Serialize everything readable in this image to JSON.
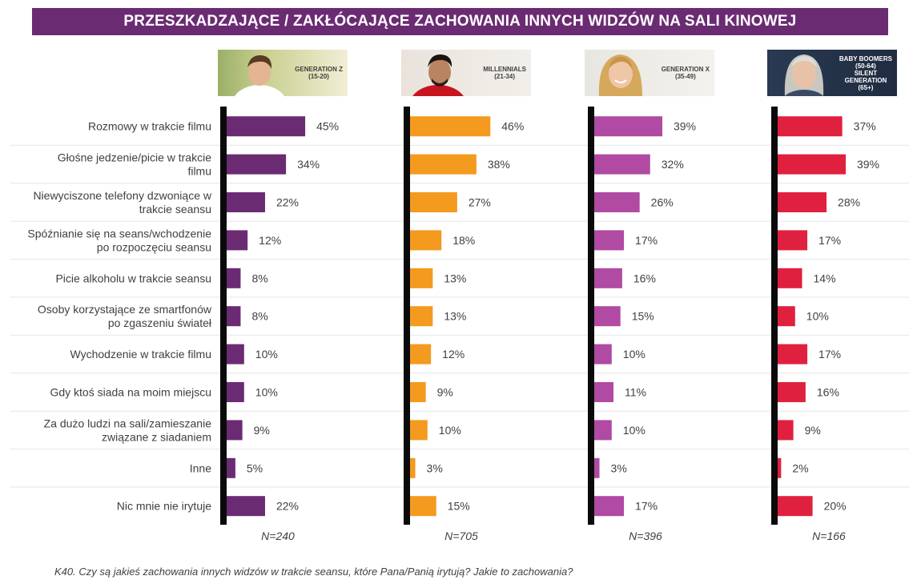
{
  "title": "PRZESZKADZAJĄCE / ZAKŁÓCAJĄCE  ZACHOWANIA INNYCH WIDZÓW NA SALI KINOWEJ",
  "footnote": "K40. Czy są jakieś zachowania innych widzów w trakcie seansu, które Pana/Panią irytują? Jakie to zachowania?",
  "groups": [
    {
      "label_lines": [
        "GENERATION Z",
        "(15-20)"
      ],
      "color": "#6b2b73",
      "n": "N=240"
    },
    {
      "label_lines": [
        "MILLENNIALS",
        "(21-34)"
      ],
      "color": "#f39a1f",
      "n": "N=705"
    },
    {
      "label_lines": [
        "GENERATION X",
        "(35-49)"
      ],
      "color": "#b04aa3",
      "n": "N=396"
    },
    {
      "label_lines": [
        "BABY BOOMERS",
        "(50-64)",
        "SILENT",
        "GENERATION",
        "(65+)"
      ],
      "color": "#e0203f",
      "n": "N=166"
    }
  ],
  "chart_data": {
    "type": "bar",
    "orientation": "horizontal",
    "title": "PRZESZKADZAJĄCE / ZAKŁÓCAJĄCE  ZACHOWANIA INNYCH WIDZÓW NA SALI KINOWEJ",
    "unit": "%",
    "xlim": [
      0,
      50
    ],
    "categories": [
      [
        "Rozmowy w trakcie filmu"
      ],
      [
        "Głośne jedzenie/picie w trakcie",
        "filmu"
      ],
      [
        "Niewyciszone telefony dzwoniące w",
        "trakcie seansu"
      ],
      [
        "Spóźnianie się na seans/wchodzenie",
        "po rozpoczęciu seansu"
      ],
      [
        "Picie alkoholu w trakcie seansu"
      ],
      [
        "Osoby korzystające ze smartfonów",
        "po zgaszeniu świateł"
      ],
      [
        "Wychodzenie w trakcie filmu"
      ],
      [
        "Gdy ktoś siada na moim miejscu"
      ],
      [
        "Za dużo ludzi na sali/zamieszanie",
        "związane z siadaniem"
      ],
      [
        "Inne"
      ],
      [
        "Nic mnie nie irytuje"
      ]
    ],
    "series": [
      {
        "name": "GENERATION Z (15-20)",
        "values": [
          45,
          34,
          22,
          12,
          8,
          8,
          10,
          10,
          9,
          5,
          22
        ]
      },
      {
        "name": "MILLENNIALS (21-34)",
        "values": [
          46,
          38,
          27,
          18,
          13,
          13,
          12,
          9,
          10,
          3,
          15
        ]
      },
      {
        "name": "GENERATION X (35-49)",
        "values": [
          39,
          32,
          26,
          17,
          16,
          15,
          10,
          11,
          10,
          3,
          17
        ]
      },
      {
        "name": "BABY BOOMERS (50-64) SILENT GENERATION (65+)",
        "values": [
          37,
          39,
          28,
          17,
          14,
          10,
          17,
          16,
          9,
          2,
          20
        ]
      }
    ]
  }
}
